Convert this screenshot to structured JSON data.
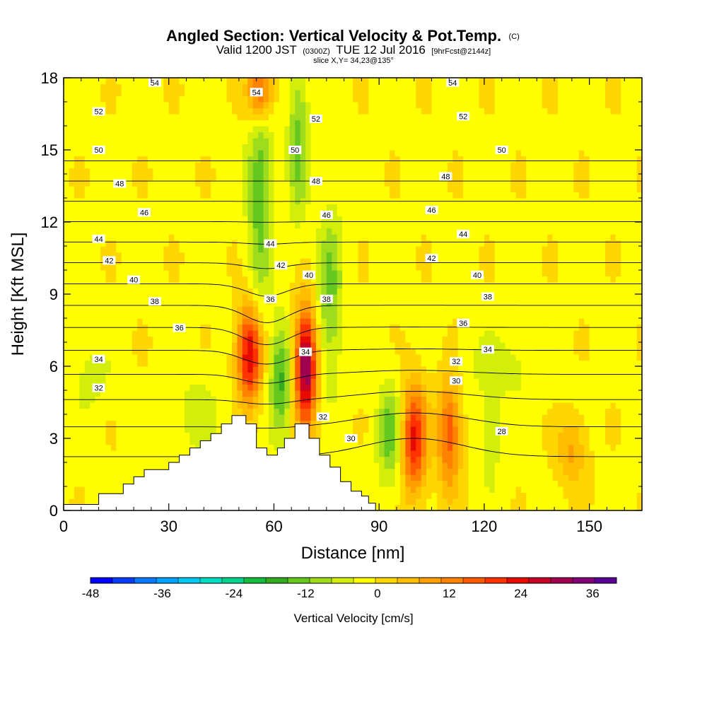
{
  "title": {
    "main": "Angled Section: Vertical Velocity & Pot.Temp.",
    "main_unit": "(C)",
    "valid_prefix": "Valid 1200 JST",
    "valid_z": "(0300Z)",
    "valid_date": "TUE 12 Jul 2016",
    "valid_fcst": "[9hrFcst@2144z]",
    "slice": "slice X,Y= 34,23@135°"
  },
  "chart_data": {
    "type": "heatmap",
    "xlabel": "Distance [nm]",
    "ylabel": "Height [Kft MSL]",
    "xlim": [
      0,
      165
    ],
    "ylim": [
      0,
      18
    ],
    "x_ticks": [
      0,
      30,
      60,
      90,
      120,
      150
    ],
    "y_ticks": [
      0,
      3,
      6,
      9,
      12,
      15,
      18
    ],
    "colorbar": {
      "label": "Vertical Velocity [cm/s]",
      "range": [
        -48,
        40
      ],
      "step": 4,
      "ticks": [
        -48,
        -36,
        -24,
        -12,
        0,
        12,
        24,
        36
      ],
      "colors": [
        "#0000ff",
        "#0a3cff",
        "#0a78ff",
        "#00a0ff",
        "#00c8f0",
        "#00dcc0",
        "#00d28c",
        "#14be3c",
        "#32ab1e",
        "#64c81e",
        "#a0dc1e",
        "#d2ee0a",
        "#ffff00",
        "#ffd700",
        "#ffbe00",
        "#ffa000",
        "#ff8200",
        "#ff5a00",
        "#ff3200",
        "#e60a00",
        "#c80028",
        "#a00050",
        "#820078",
        "#5a0096"
      ]
    },
    "terrain_profile": [
      [
        0,
        0.25
      ],
      [
        10,
        0.25
      ],
      [
        10,
        0.7
      ],
      [
        17,
        0.7
      ],
      [
        17,
        1.1
      ],
      [
        20,
        1.1
      ],
      [
        20,
        1.4
      ],
      [
        23,
        1.4
      ],
      [
        23,
        1.7
      ],
      [
        30,
        1.7
      ],
      [
        30,
        2.0
      ],
      [
        33,
        2.0
      ],
      [
        33,
        2.3
      ],
      [
        36,
        2.3
      ],
      [
        36,
        2.6
      ],
      [
        39,
        2.6
      ],
      [
        39,
        2.9
      ],
      [
        42,
        2.9
      ],
      [
        42,
        3.2
      ],
      [
        45,
        3.2
      ],
      [
        45,
        3.6
      ],
      [
        48,
        3.6
      ],
      [
        48,
        3.95
      ],
      [
        52,
        3.95
      ],
      [
        52,
        3.6
      ],
      [
        55,
        3.6
      ],
      [
        55,
        2.6
      ],
      [
        58,
        2.6
      ],
      [
        58,
        2.3
      ],
      [
        61,
        2.3
      ],
      [
        61,
        2.6
      ],
      [
        63,
        2.6
      ],
      [
        63,
        3.0
      ],
      [
        66,
        3.0
      ],
      [
        66,
        3.6
      ],
      [
        70,
        3.6
      ],
      [
        70,
        3.0
      ],
      [
        73,
        3.0
      ],
      [
        73,
        2.3
      ],
      [
        76,
        2.3
      ],
      [
        76,
        1.8
      ],
      [
        79,
        1.8
      ],
      [
        79,
        1.2
      ],
      [
        82,
        1.2
      ],
      [
        82,
        0.8
      ],
      [
        85,
        0.8
      ],
      [
        85,
        0.6
      ],
      [
        87,
        0.6
      ],
      [
        87,
        0.3
      ],
      [
        89,
        0.3
      ],
      [
        89,
        0
      ]
    ],
    "w_cells": [
      {
        "x": 53,
        "y": 6.5,
        "sx": 2.5,
        "sy": 1.4,
        "v": 30
      },
      {
        "x": 69,
        "y": 6.0,
        "sx": 2.2,
        "sy": 1.7,
        "v": 38
      },
      {
        "x": 62,
        "y": 5.5,
        "sx": 2.3,
        "sy": 1.6,
        "v": -16
      },
      {
        "x": 56,
        "y": 13.5,
        "sx": 2.5,
        "sy": 3.5,
        "v": -14
      },
      {
        "x": 76,
        "y": 9.0,
        "sx": 2.5,
        "sy": 2.5,
        "v": -12
      },
      {
        "x": 67,
        "y": 15.5,
        "sx": 2.0,
        "sy": 2.5,
        "v": -12
      },
      {
        "x": 56,
        "y": 17.5,
        "sx": 2.5,
        "sy": 1.0,
        "v": 25
      },
      {
        "x": 100,
        "y": 3.0,
        "sx": 2.5,
        "sy": 1.6,
        "v": 26
      },
      {
        "x": 110,
        "y": 3.2,
        "sx": 2.3,
        "sy": 1.6,
        "v": 20
      },
      {
        "x": 93,
        "y": 3.2,
        "sx": 2.5,
        "sy": 1.5,
        "v": -13
      },
      {
        "x": 145,
        "y": 2.5,
        "sx": 3.0,
        "sy": 1.0,
        "v": 10
      },
      {
        "x": 122,
        "y": 3.0,
        "sx": 2.0,
        "sy": 1.5,
        "v": -6
      },
      {
        "x": 8,
        "y": 5.5,
        "sx": 4.0,
        "sy": 1.0,
        "v": -5
      },
      {
        "x": 38,
        "y": 4.0,
        "sx": 5.0,
        "sy": 1.2,
        "v": -5
      },
      {
        "x": 125,
        "y": 6.0,
        "sx": 8.0,
        "sy": 1.0,
        "v": -5
      }
    ],
    "theta_levels": [
      28,
      30,
      32,
      34,
      36,
      38,
      40,
      42,
      44,
      46,
      48,
      50,
      52,
      54
    ],
    "theta_labels": [
      {
        "x": 26,
        "y": 17.8,
        "t": "54"
      },
      {
        "x": 55,
        "y": 17.4,
        "t": "54"
      },
      {
        "x": 111,
        "y": 17.8,
        "t": "54"
      },
      {
        "x": 10,
        "y": 16.6,
        "t": "52"
      },
      {
        "x": 72,
        "y": 16.3,
        "t": "52"
      },
      {
        "x": 114,
        "y": 16.4,
        "t": "52"
      },
      {
        "x": 10,
        "y": 15.0,
        "t": "50"
      },
      {
        "x": 66,
        "y": 15.0,
        "t": "50"
      },
      {
        "x": 125,
        "y": 15.0,
        "t": "50"
      },
      {
        "x": 16,
        "y": 13.6,
        "t": "48"
      },
      {
        "x": 72,
        "y": 13.7,
        "t": "48"
      },
      {
        "x": 109,
        "y": 13.9,
        "t": "48"
      },
      {
        "x": 23,
        "y": 12.4,
        "t": "46"
      },
      {
        "x": 75,
        "y": 12.3,
        "t": "46"
      },
      {
        "x": 105,
        "y": 12.5,
        "t": "46"
      },
      {
        "x": 10,
        "y": 11.3,
        "t": "44"
      },
      {
        "x": 59,
        "y": 11.1,
        "t": "44"
      },
      {
        "x": 114,
        "y": 11.5,
        "t": "44"
      },
      {
        "x": 13,
        "y": 10.4,
        "t": "42"
      },
      {
        "x": 62,
        "y": 10.2,
        "t": "42"
      },
      {
        "x": 105,
        "y": 10.5,
        "t": "42"
      },
      {
        "x": 20,
        "y": 9.6,
        "t": "40"
      },
      {
        "x": 70,
        "y": 9.8,
        "t": "40"
      },
      {
        "x": 118,
        "y": 9.8,
        "t": "40"
      },
      {
        "x": 26,
        "y": 8.7,
        "t": "38"
      },
      {
        "x": 75,
        "y": 8.8,
        "t": "38"
      },
      {
        "x": 121,
        "y": 8.9,
        "t": "38"
      },
      {
        "x": 33,
        "y": 7.6,
        "t": "36"
      },
      {
        "x": 59,
        "y": 8.8,
        "t": "36"
      },
      {
        "x": 114,
        "y": 7.8,
        "t": "36"
      },
      {
        "x": 10,
        "y": 6.3,
        "t": "34"
      },
      {
        "x": 69,
        "y": 6.6,
        "t": "34"
      },
      {
        "x": 121,
        "y": 6.7,
        "t": "34"
      },
      {
        "x": 10,
        "y": 5.1,
        "t": "32"
      },
      {
        "x": 74,
        "y": 3.9,
        "t": "32"
      },
      {
        "x": 112,
        "y": 6.2,
        "t": "32"
      },
      {
        "x": 82,
        "y": 3.0,
        "t": "30"
      },
      {
        "x": 112,
        "y": 5.4,
        "t": "30"
      },
      {
        "x": 125,
        "y": 3.3,
        "t": "28"
      }
    ]
  }
}
